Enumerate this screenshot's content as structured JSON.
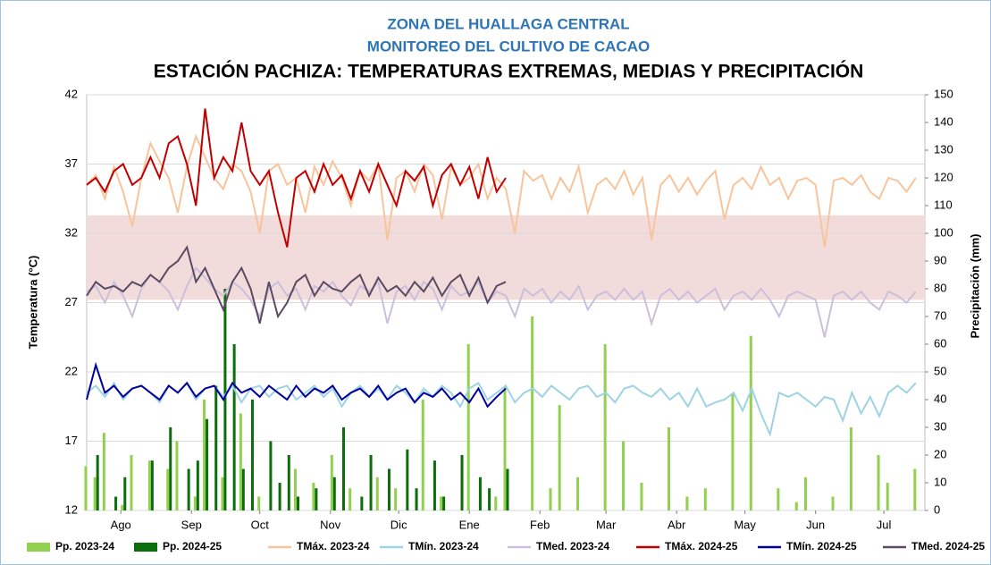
{
  "chart_data": {
    "type": "line",
    "title": "ZONA DEL HUALLAGA CENTRAL",
    "subtitle": "MONITOREO DEL CULTIVO DE CACAO",
    "heading": "ESTACIÓN PACHIZA: TEMPERATURAS EXTREMAS, MEDIAS Y PRECIPITACIÓN",
    "ylabel": "Temperatura (°C)",
    "y2label": "Precipitación (mm)",
    "xlim": [
      0,
      368
    ],
    "ylim": [
      12,
      42
    ],
    "yticks": [
      12,
      17,
      22,
      27,
      32,
      37,
      42
    ],
    "y2lim": [
      0,
      150
    ],
    "y2ticks": [
      0,
      10,
      20,
      30,
      40,
      50,
      60,
      70,
      80,
      90,
      100,
      110,
      120,
      130,
      140,
      150
    ],
    "xticks": [
      {
        "value": 15,
        "label": "Ago"
      },
      {
        "value": 46,
        "label": "Sep"
      },
      {
        "value": 76,
        "label": "Oct"
      },
      {
        "value": 107,
        "label": "Nov"
      },
      {
        "value": 137,
        "label": "Dic"
      },
      {
        "value": 168,
        "label": "Ene"
      },
      {
        "value": 199,
        "label": "Feb"
      },
      {
        "value": 228,
        "label": "Mar"
      },
      {
        "value": 259,
        "label": "Abr"
      },
      {
        "value": 289,
        "label": "May"
      },
      {
        "value": 320,
        "label": "Jun"
      },
      {
        "value": 350,
        "label": "Jul"
      }
    ],
    "grid": true,
    "shaded_band": [
      27.2,
      33.3
    ],
    "band_color": "#f2dcdb",
    "x": [
      0,
      4,
      8,
      12,
      16,
      20,
      24,
      28,
      32,
      36,
      40,
      44,
      48,
      52,
      56,
      60,
      64,
      68,
      72,
      76,
      80,
      84,
      88,
      92,
      96,
      100,
      104,
      108,
      112,
      116,
      120,
      124,
      128,
      132,
      136,
      140,
      144,
      148,
      152,
      156,
      160,
      164,
      168,
      172,
      176,
      180,
      184,
      188,
      192,
      196,
      200,
      204,
      208,
      212,
      216,
      220,
      224,
      228,
      232,
      236,
      240,
      244,
      248,
      252,
      256,
      260,
      264,
      268,
      272,
      276,
      280,
      284,
      288,
      292,
      296,
      300,
      304,
      308,
      312,
      316,
      320,
      324,
      328,
      332,
      336,
      340,
      344,
      348,
      352,
      356,
      360,
      364
    ],
    "series": [
      {
        "name": "Pp. 2023-24",
        "type": "bar",
        "axis": "y2",
        "color": "#92d050",
        "values": [
          16,
          12,
          28,
          0,
          2,
          20,
          0,
          18,
          0,
          15,
          25,
          0,
          5,
          40,
          0,
          12,
          0,
          35,
          0,
          5,
          0,
          0,
          0,
          15,
          0,
          10,
          0,
          20,
          0,
          8,
          0,
          0,
          12,
          0,
          8,
          0,
          0,
          40,
          0,
          5,
          0,
          0,
          60,
          0,
          0,
          5,
          45,
          0,
          0,
          70,
          0,
          8,
          38,
          0,
          12,
          0,
          0,
          60,
          0,
          25,
          0,
          10,
          0,
          0,
          30,
          0,
          5,
          0,
          8,
          0,
          0,
          42,
          0,
          63,
          0,
          0,
          8,
          0,
          3,
          12,
          0,
          0,
          5,
          0,
          30,
          0,
          0,
          20,
          10,
          0,
          0,
          15
        ]
      },
      {
        "name": "Pp. 2024-25",
        "type": "bar",
        "axis": "y2",
        "color": "#0b6e0b",
        "values": [
          0,
          20,
          0,
          5,
          12,
          0,
          0,
          18,
          0,
          30,
          0,
          15,
          18,
          33,
          45,
          80,
          60,
          15,
          40,
          0,
          25,
          10,
          20,
          5,
          0,
          8,
          0,
          12,
          30,
          0,
          5,
          20,
          0,
          15,
          0,
          22,
          8,
          0,
          18,
          5,
          0,
          20,
          0,
          12,
          8,
          0,
          15,
          null,
          null,
          null,
          null,
          null,
          null,
          null,
          null,
          null,
          null,
          null,
          null,
          null,
          null,
          null,
          null,
          null,
          null,
          null,
          null,
          null,
          null,
          null,
          null,
          null,
          null,
          null,
          null,
          null,
          null,
          null,
          null,
          null,
          null,
          null,
          null,
          null,
          null,
          null,
          null,
          null,
          null,
          null,
          null,
          null
        ]
      },
      {
        "name": "TMáx. 2023-24",
        "type": "line",
        "color": "#f8c49c",
        "values": [
          35.5,
          36.2,
          34.5,
          36.8,
          35.0,
          32.5,
          36.0,
          38.5,
          37.2,
          36.0,
          33.5,
          36.8,
          39.0,
          37.5,
          36.0,
          35.2,
          37.0,
          36.5,
          35.0,
          32.0,
          36.5,
          37.0,
          35.5,
          36.0,
          33.5,
          36.8,
          35.5,
          37.2,
          36.0,
          34.0,
          36.5,
          35.8,
          37.0,
          31.5,
          36.0,
          36.5,
          35.0,
          37.0,
          36.2,
          33.0,
          36.8,
          35.5,
          36.0,
          37.0,
          34.5,
          36.0,
          35.2,
          32.0,
          36.5,
          35.8,
          36.2,
          34.5,
          36.0,
          35.0,
          36.8,
          33.5,
          35.5,
          36.0,
          35.2,
          36.5,
          34.8,
          36.0,
          31.5,
          35.5,
          36.2,
          35.0,
          36.0,
          34.8,
          35.8,
          36.5,
          33.0,
          35.5,
          36.0,
          35.2,
          36.8,
          35.5,
          36.0,
          34.5,
          35.8,
          36.0,
          35.5,
          31.0,
          35.8,
          36.0,
          35.5,
          36.2,
          35.0,
          34.5,
          36.0,
          35.8,
          35.0,
          36.0
        ]
      },
      {
        "name": "TMín. 2023-24",
        "type": "line",
        "color": "#9dd3e4",
        "values": [
          20.5,
          21.0,
          20.2,
          21.2,
          20.0,
          20.8,
          21.0,
          20.5,
          19.8,
          21.0,
          20.5,
          21.2,
          20.0,
          20.8,
          21.0,
          20.2,
          21.0,
          19.8,
          20.8,
          21.0,
          20.2,
          20.8,
          21.0,
          20.0,
          20.5,
          21.0,
          20.2,
          20.8,
          19.5,
          20.5,
          21.0,
          20.2,
          20.8,
          20.0,
          21.0,
          20.5,
          19.8,
          20.8,
          20.2,
          21.0,
          20.5,
          19.5,
          20.8,
          21.2,
          20.0,
          20.5,
          21.0,
          19.8,
          20.5,
          20.8,
          20.2,
          21.0,
          20.5,
          20.0,
          20.8,
          21.0,
          20.2,
          20.5,
          19.8,
          20.8,
          21.0,
          20.5,
          20.2,
          20.8,
          20.0,
          20.5,
          19.5,
          20.8,
          19.5,
          19.8,
          20.0,
          20.5,
          19.2,
          20.8,
          19.0,
          17.5,
          20.5,
          20.2,
          20.5,
          20.0,
          19.5,
          20.2,
          20.0,
          18.5,
          20.5,
          19.0,
          20.2,
          18.8,
          20.5,
          21.0,
          20.5,
          21.2
        ]
      },
      {
        "name": "TMed. 2023-24",
        "type": "line",
        "color": "#cbbfdb",
        "values": [
          27.8,
          28.2,
          27.0,
          28.5,
          27.5,
          26.0,
          28.0,
          29.0,
          28.5,
          27.8,
          26.5,
          28.2,
          29.5,
          28.8,
          28.0,
          27.5,
          28.5,
          28.0,
          27.2,
          26.0,
          28.0,
          28.5,
          27.5,
          28.0,
          26.5,
          28.2,
          27.8,
          28.5,
          27.5,
          26.8,
          28.2,
          27.8,
          28.5,
          25.5,
          27.8,
          28.2,
          27.2,
          28.5,
          28.0,
          26.5,
          28.2,
          27.5,
          27.8,
          28.5,
          27.0,
          27.8,
          27.5,
          26.0,
          28.0,
          27.5,
          28.0,
          27.0,
          27.8,
          27.2,
          28.2,
          26.5,
          27.5,
          27.8,
          27.2,
          28.0,
          27.2,
          27.8,
          25.5,
          27.5,
          28.0,
          27.2,
          27.8,
          27.0,
          27.5,
          28.0,
          26.5,
          27.5,
          27.8,
          27.2,
          28.0,
          27.2,
          26.0,
          27.5,
          27.8,
          27.5,
          27.2,
          24.5,
          27.5,
          27.8,
          27.2,
          27.8,
          27.0,
          26.5,
          27.8,
          27.5,
          27.0,
          27.8
        ]
      },
      {
        "name": "TMáx. 2024-25",
        "type": "line",
        "color": "#c00000",
        "values": [
          35.5,
          36.0,
          35.0,
          36.5,
          37.0,
          35.5,
          36.0,
          37.5,
          36.0,
          38.5,
          39.0,
          37.0,
          34.0,
          41.0,
          36.0,
          37.5,
          36.5,
          40.0,
          36.5,
          35.5,
          36.5,
          33.5,
          31.0,
          36.0,
          36.5,
          35.0,
          37.0,
          35.5,
          36.2,
          34.5,
          36.5,
          35.0,
          37.0,
          35.5,
          34.0,
          36.5,
          35.8,
          36.8,
          34.0,
          36.2,
          37.0,
          35.5,
          36.8,
          34.5,
          37.5,
          35.0,
          36.0,
          null,
          null,
          null,
          null,
          null,
          null,
          null,
          null,
          null,
          null,
          null,
          null,
          null,
          null,
          null,
          null,
          null,
          null,
          null,
          null,
          null,
          null,
          null,
          null,
          null,
          null,
          null,
          null,
          null,
          null,
          null,
          null,
          null,
          null,
          null,
          null,
          null,
          null,
          null,
          null,
          null,
          null,
          null,
          null,
          null
        ]
      },
      {
        "name": "TMín. 2024-25",
        "type": "line",
        "color": "#00009c",
        "values": [
          20.0,
          22.5,
          20.5,
          21.0,
          20.2,
          20.8,
          21.0,
          20.5,
          20.0,
          21.0,
          20.5,
          21.2,
          20.2,
          20.8,
          21.0,
          20.0,
          21.2,
          20.5,
          20.8,
          20.2,
          21.0,
          20.5,
          20.0,
          21.0,
          20.2,
          20.8,
          20.5,
          21.0,
          20.0,
          20.5,
          20.8,
          20.2,
          21.0,
          20.0,
          20.5,
          20.8,
          19.8,
          20.5,
          20.2,
          20.8,
          20.0,
          20.5,
          19.8,
          20.8,
          19.5,
          20.2,
          20.8,
          null,
          null,
          null,
          null,
          null,
          null,
          null,
          null,
          null,
          null,
          null,
          null,
          null,
          null,
          null,
          null,
          null,
          null,
          null,
          null,
          null,
          null,
          null,
          null,
          null,
          null,
          null,
          null,
          null,
          null,
          null,
          null,
          null,
          null,
          null,
          null,
          null,
          null,
          null,
          null,
          null,
          null,
          null,
          null,
          null
        ]
      },
      {
        "name": "TMed. 2024-25",
        "type": "line",
        "color": "#5a4a62",
        "values": [
          27.5,
          28.5,
          28.0,
          28.2,
          27.8,
          28.5,
          28.2,
          29.0,
          28.5,
          29.5,
          30.0,
          31.0,
          28.5,
          29.5,
          28.0,
          26.5,
          28.5,
          29.5,
          28.0,
          25.5,
          28.5,
          26.0,
          27.0,
          28.5,
          29.0,
          27.5,
          28.5,
          28.0,
          27.8,
          28.5,
          29.0,
          27.5,
          28.8,
          27.8,
          28.2,
          27.5,
          28.5,
          27.8,
          28.8,
          27.5,
          28.5,
          29.0,
          27.5,
          28.8,
          27.0,
          28.2,
          28.5,
          null,
          null,
          null,
          null,
          null,
          null,
          null,
          null,
          null,
          null,
          null,
          null,
          null,
          null,
          null,
          null,
          null,
          null,
          null,
          null,
          null,
          null,
          null,
          null,
          null,
          null,
          null,
          null,
          null,
          null,
          null,
          null,
          null,
          null,
          null,
          null,
          null,
          null,
          null,
          null,
          null,
          null,
          null,
          null,
          null
        ]
      }
    ]
  }
}
